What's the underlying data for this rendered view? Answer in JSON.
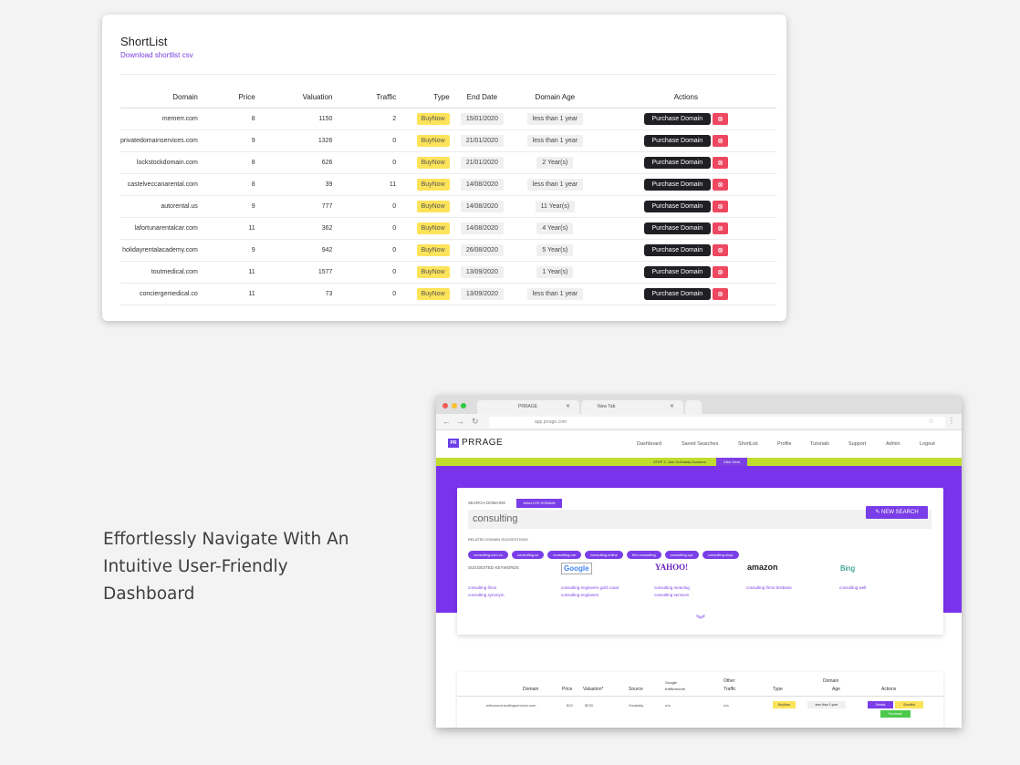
{
  "shortlist": {
    "title": "ShortList",
    "download_link": "Download shortlist csv",
    "columns": [
      "Domain",
      "Price",
      "Valuation",
      "Traffic",
      "Type",
      "End Date",
      "Domain Age",
      "Actions"
    ],
    "purchase_label": "Purchase Domain",
    "rows": [
      {
        "domain": "memerr.com",
        "price": "8",
        "valuation": "1150",
        "traffic": "2",
        "type": "BuyNow",
        "end_date": "15/01/2020",
        "age": "less than 1 year"
      },
      {
        "domain": "privatedomainservices.com",
        "price": "9",
        "valuation": "1326",
        "traffic": "0",
        "type": "BuyNow",
        "end_date": "21/01/2020",
        "age": "less than 1 year"
      },
      {
        "domain": "lockstockdomain.com",
        "price": "8",
        "valuation": "626",
        "traffic": "0",
        "type": "BuyNow",
        "end_date": "21/01/2020",
        "age": "2 Year(s)"
      },
      {
        "domain": "castelveccanarental.com",
        "price": "8",
        "valuation": "39",
        "traffic": "11",
        "type": "BuyNow",
        "end_date": "14/08/2020",
        "age": "less than 1 year"
      },
      {
        "domain": "autorental.us",
        "price": "9",
        "valuation": "777",
        "traffic": "0",
        "type": "BuyNow",
        "end_date": "14/08/2020",
        "age": "11 Year(s)"
      },
      {
        "domain": "lafortunarentalcar.com",
        "price": "11",
        "valuation": "362",
        "traffic": "0",
        "type": "BuyNow",
        "end_date": "14/08/2020",
        "age": "4 Year(s)"
      },
      {
        "domain": "holidayrentalacademy.com",
        "price": "9",
        "valuation": "942",
        "traffic": "0",
        "type": "BuyNow",
        "end_date": "26/08/2020",
        "age": "5 Year(s)"
      },
      {
        "domain": "toutmedical.com",
        "price": "11",
        "valuation": "1577",
        "traffic": "0",
        "type": "BuyNow",
        "end_date": "13/09/2020",
        "age": "1 Year(s)"
      },
      {
        "domain": "conciergemedical.co",
        "price": "11",
        "valuation": "73",
        "traffic": "0",
        "type": "BuyNow",
        "end_date": "13/09/2020",
        "age": "less than 1 year"
      }
    ]
  },
  "feature": {
    "line1": "Effortlessly Navigate With An",
    "line2": "Intuitive User-Friendly",
    "line3": "Dashboard"
  },
  "browser": {
    "tab1": "PRRAGE",
    "tab2": "New Tab",
    "url": "app.prrage.com",
    "logo_badge": "PR",
    "logo_text": "PRRAGE",
    "nav": [
      "Dashboard",
      "Saved Searches",
      "ShortList",
      "Profile",
      "Tutorials",
      "Support",
      "Admin",
      "Logout"
    ],
    "banner_text": "STEP 1: Join GoDaddy Auctions",
    "banner_button": "Click Here",
    "search_label": "SEARCH DOMAINS",
    "analyze_label": "ANALYZE DOMAIN",
    "search_value": "consulting",
    "new_search": "NEW SEARCH",
    "related_label": "RELATED DOMAIN SUGGESTIONS",
    "chips": [
      "consulting.com.co",
      "consulting.co",
      "consulting.me",
      "consulting.online",
      "firm.consulting",
      "consulting.xyz",
      "consulting.shop"
    ],
    "keywords_label": "SUGGESTED KEYWORDS",
    "engines": [
      "Google",
      "YAHOO!",
      "amazon",
      "Bing"
    ],
    "kw": {
      "google": [
        "consulting firms",
        "consulting synonym"
      ],
      "yahoo": [
        "consulting engineers gold coast",
        "consulting engineers"
      ],
      "amazon": [
        "consulting meaning",
        "consulting services"
      ],
      "bing": [
        "consulting firms brisbane"
      ],
      "extra": [
        "consulting well"
      ]
    },
    "results": {
      "headers": {
        "domain": "Domain",
        "price": "Price",
        "valuation": "Valuation*",
        "source": "Source",
        "google": "Google",
        "google2": "traffic/month",
        "other": "Other",
        "other2": "Traffic",
        "type": "Type",
        "age": "Domain",
        "age2": "Age",
        "actions": "Actions"
      },
      "row": {
        "domain": "wilsonsconsultingservices.com",
        "price": "$10",
        "valuation": "$233",
        "source": "Godaddy",
        "google": "n/a",
        "other": "n/a",
        "type": "BuyNow",
        "age": "less than 1 year",
        "details": "Details",
        "shortlist": "Shortlist",
        "purchase": "Purchase"
      }
    }
  },
  "colors": {
    "accent_purple": "#7a33ec",
    "banner_green": "#c0dd2e",
    "buy_now_yellow": "#fde35a",
    "delete_red": "#ee4760"
  }
}
